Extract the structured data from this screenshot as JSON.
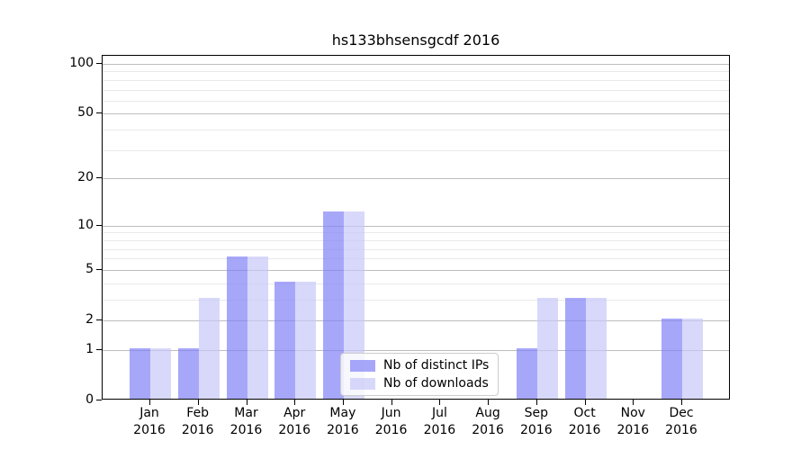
{
  "chart_data": {
    "type": "bar",
    "title": "hs133bhsensgcdf 2016",
    "x_year": "2016",
    "categories": [
      "Jan",
      "Feb",
      "Mar",
      "Apr",
      "May",
      "Jun",
      "Jul",
      "Aug",
      "Sep",
      "Oct",
      "Nov",
      "Dec"
    ],
    "series": [
      {
        "name": "Nb of distinct IPs",
        "color": "rgba(130,130,248,0.7)",
        "values": [
          1,
          1,
          6,
          4,
          12,
          0,
          0,
          0,
          1,
          3,
          0,
          2
        ]
      },
      {
        "name": "Nb of downloads",
        "color": "rgba(200,200,250,0.7)",
        "values": [
          1,
          3,
          6,
          4,
          12,
          0,
          0,
          0,
          3,
          3,
          0,
          2
        ]
      }
    ],
    "yscale": "log10(1+y)",
    "ylim": [
      0,
      112
    ],
    "y_major_ticks": [
      0,
      1,
      2,
      5,
      10,
      20,
      50,
      100
    ],
    "y_minor_gridlines": [
      3,
      4,
      6,
      7,
      8,
      9,
      30,
      40,
      60,
      70,
      80,
      90
    ],
    "grid": true,
    "legend_position": "lower center"
  },
  "style": {
    "major_grid_color": "#bdbdbd",
    "minor_grid_color": "#e9e9e9",
    "spine_color": "#000000",
    "legend_border_color": "#cccccc",
    "background": "#ffffff"
  }
}
